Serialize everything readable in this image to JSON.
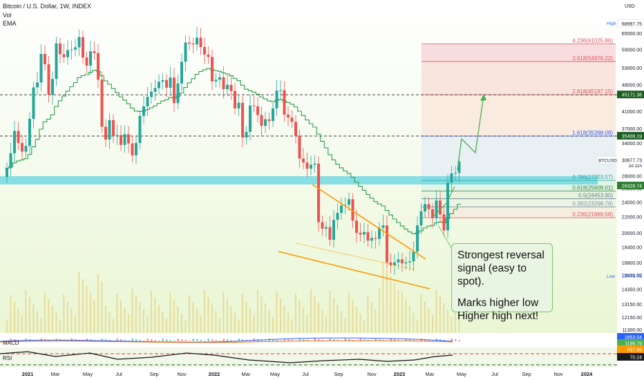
{
  "header": {
    "title": "Bitcoin / U.S. Dollar, 1W, INDEX",
    "vol_label": "Vol",
    "ema_label": "EMA"
  },
  "price_axis": {
    "currency": "USD",
    "ticks": [
      65000,
      59000,
      53000,
      48000,
      45000,
      41000,
      37000,
      34000,
      31000,
      28000,
      26000,
      24000,
      22000,
      20000,
      18400,
      16800,
      15600,
      14350,
      13150,
      12150,
      11300
    ],
    "high_label": "High",
    "high_value": "68997.75",
    "low_label": "Low",
    "low_value": "15473.78",
    "badges": {
      "level_45171": "45171.38",
      "level_35408": "35408.19",
      "btcusd_symbol": "BTCUSD",
      "btcusd_price": "30677.73",
      "btcusd_timer": "2d 11h",
      "support_26328": "26328.74",
      "macd_1": "1853.54",
      "macd_2": "1196.79",
      "macd_3": "657.86",
      "rsi_value": "70.24"
    }
  },
  "time_axis": {
    "labels": [
      "2021",
      "Mar",
      "May",
      "Jul",
      "Sep",
      "Nov",
      "2022",
      "Mar",
      "May",
      "Jul",
      "Sep",
      "Nov",
      "2023",
      "Mar",
      "May",
      "Jul",
      "Sep",
      "Nov",
      "2024"
    ]
  },
  "fib_levels": [
    {
      "label": "4.236(61025.86)",
      "ratio": 4.236,
      "price": 61025.86,
      "color": "#e05060"
    },
    {
      "label": "3.618(54976.22)",
      "ratio": 3.618,
      "price": 54976.22,
      "color": "#e05060"
    },
    {
      "label": "2.618(45187.15)",
      "ratio": 2.618,
      "price": 45187.15,
      "color": "#e05060"
    },
    {
      "label": "1.618(35398.08)",
      "ratio": 1.618,
      "price": 35398.08,
      "color": "#2962ff"
    },
    {
      "label": "0.786(27253.57)",
      "ratio": 0.786,
      "price": 27253.57,
      "color": "#26a69a"
    },
    {
      "label": "0.618(25609.01)",
      "ratio": 0.618,
      "price": 25609.01,
      "color": "#2e7d32"
    },
    {
      "label": "0.5(24453.90)",
      "ratio": 0.5,
      "price": 24453.9,
      "color": "#607d8b"
    },
    {
      "label": "0.382(23298.78)",
      "ratio": 0.382,
      "price": 23298.78,
      "color": "#78909c"
    },
    {
      "label": "0.236(21869.58)",
      "ratio": 0.236,
      "price": 21869.58,
      "color": "#e05060"
    }
  ],
  "callout": {
    "line1": "Strongest reversal",
    "line2": "signal (easy to spot).",
    "line3": "Marks higher low",
    "line4": "Higher high next!"
  },
  "indicators": {
    "macd_label": "MACD",
    "rsi_label": "RSI"
  },
  "chart_data": {
    "type": "candlestick",
    "title": "Bitcoin / U.S. Dollar, 1W, INDEX",
    "ylim": [
      11000,
      70000
    ],
    "y_scale": "log",
    "grid": false,
    "colors": {
      "up": "#26a69a",
      "down": "#ef5350",
      "ema": "#2e9d4f",
      "fib_up": "#4caf50",
      "wedge": "#ff9800",
      "support_zone": "#4dd0e1"
    },
    "series": [
      {
        "name": "BTCUSD",
        "close": [
          29300,
          32000,
          36500,
          34000,
          32300,
          33400,
          39200,
          47200,
          48600,
          57500,
          54100,
          45200,
          49600,
          61200,
          57400,
          56400,
          58800,
          59000,
          59800,
          63500,
          56300,
          53700,
          58400,
          57800,
          49400,
          37400,
          34700,
          38900,
          35400,
          35600,
          33600,
          35800,
          33900,
          31600,
          34000,
          39900,
          42200,
          44600,
          46000,
          47000,
          48800,
          49300,
          47100,
          50000,
          43000,
          48300,
          54900,
          61500,
          61100,
          60800,
          63300,
          59900,
          57300,
          56500,
          48900,
          49400,
          50100,
          46700,
          47900,
          46200,
          41700,
          43100,
          35100,
          36300,
          42400,
          42200,
          40100,
          37600,
          39100,
          38700,
          41700,
          46300,
          46400,
          40200,
          39500,
          38500,
          35500,
          31000,
          30300,
          29200,
          29900,
          30100,
          21300,
          20500,
          20700,
          19200,
          21600,
          22500,
          23500,
          23600,
          24400,
          21500,
          20000,
          19800,
          20100,
          19100,
          19400,
          19300,
          20600,
          20900,
          16800,
          16500,
          16800,
          17100,
          16700,
          16800,
          16900,
          17900,
          20900,
          22700,
          23700,
          23000,
          21800,
          24200,
          22300,
          20300,
          26900,
          28400,
          28500,
          30500
        ]
      }
    ],
    "fib_levels": [
      4.236,
      3.618,
      2.618,
      1.618,
      0.786,
      0.618,
      0.5,
      0.382,
      0.236
    ],
    "projection": "higher high next"
  }
}
